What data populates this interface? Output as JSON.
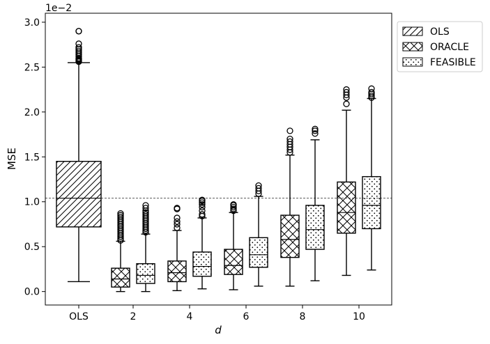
{
  "chart_data": {
    "type": "boxplot",
    "xlabel": "d",
    "ylabel": "MSE",
    "scale_label": "1e−2",
    "ylim": [
      -0.15,
      3.1
    ],
    "y_ticks": [
      "0.0",
      "0.5",
      "1.0",
      "1.5",
      "2.0",
      "2.5",
      "3.0"
    ],
    "x_ticks": [
      "OLS",
      "2",
      "4",
      "6",
      "8",
      "10"
    ],
    "reference_line": 1.04,
    "legend": {
      "placement": "outside-top-right",
      "entries": [
        "OLS",
        "ORACLE",
        "FEASIBLE"
      ]
    },
    "series": [
      {
        "name": "OLS",
        "pattern": "hatch-diagonal",
        "boxes": [
          {
            "x": "OLS",
            "whisker_low": 0.11,
            "q1": 0.72,
            "median": 1.04,
            "q3": 1.45,
            "whisker_high": 2.55,
            "outliers": [
              2.56,
              2.57,
              2.58,
              2.59,
              2.6,
              2.62,
              2.64,
              2.66,
              2.68,
              2.7,
              2.72,
              2.76,
              2.9,
              2.9
            ]
          }
        ]
      },
      {
        "name": "ORACLE",
        "pattern": "hatch-cross",
        "boxes": [
          {
            "x": "2",
            "whisker_low": 0.0,
            "q1": 0.05,
            "median": 0.14,
            "q3": 0.26,
            "whisker_high": 0.56,
            "outliers": [
              0.57,
              0.59,
              0.61,
              0.63,
              0.65,
              0.67,
              0.69,
              0.71,
              0.73,
              0.75,
              0.77,
              0.79,
              0.81,
              0.83,
              0.85,
              0.87
            ]
          },
          {
            "x": "4",
            "whisker_low": 0.01,
            "q1": 0.11,
            "median": 0.21,
            "q3": 0.34,
            "whisker_high": 0.68,
            "outliers": [
              0.71,
              0.75,
              0.78,
              0.82,
              0.92,
              0.93
            ]
          },
          {
            "x": "6",
            "whisker_low": 0.02,
            "q1": 0.19,
            "median": 0.29,
            "q3": 0.47,
            "whisker_high": 0.88,
            "outliers": [
              0.9,
              0.92,
              0.94,
              0.96,
              0.97
            ]
          },
          {
            "x": "8",
            "whisker_low": 0.06,
            "q1": 0.38,
            "median": 0.58,
            "q3": 0.85,
            "whisker_high": 1.52,
            "outliers": [
              1.55,
              1.58,
              1.61,
              1.64,
              1.67,
              1.7,
              1.79
            ]
          },
          {
            "x": "10",
            "whisker_low": 0.18,
            "q1": 0.65,
            "median": 0.88,
            "q3": 1.22,
            "whisker_high": 2.02,
            "outliers": [
              2.09,
              2.16,
              2.19,
              2.22,
              2.25
            ]
          }
        ]
      },
      {
        "name": "FEASIBLE",
        "pattern": "dots",
        "boxes": [
          {
            "x": "2",
            "whisker_low": 0.0,
            "q1": 0.09,
            "median": 0.18,
            "q3": 0.31,
            "whisker_high": 0.64,
            "outliers": [
              0.66,
              0.68,
              0.7,
              0.72,
              0.74,
              0.76,
              0.78,
              0.8,
              0.82,
              0.84,
              0.86,
              0.88,
              0.9,
              0.93,
              0.96
            ]
          },
          {
            "x": "4",
            "whisker_low": 0.03,
            "q1": 0.17,
            "median": 0.28,
            "q3": 0.44,
            "whisker_high": 0.82,
            "outliers": [
              0.84,
              0.86,
              0.9,
              0.94,
              0.97,
              0.99,
              1.01,
              1.02
            ]
          },
          {
            "x": "6",
            "whisker_low": 0.06,
            "q1": 0.27,
            "median": 0.41,
            "q3": 0.6,
            "whisker_high": 1.06,
            "outliers": [
              1.09,
              1.12,
              1.15,
              1.18
            ]
          },
          {
            "x": "8",
            "whisker_low": 0.12,
            "q1": 0.47,
            "median": 0.69,
            "q3": 0.96,
            "whisker_high": 1.69,
            "outliers": [
              1.76,
              1.79,
              1.81
            ]
          },
          {
            "x": "10",
            "whisker_low": 0.24,
            "q1": 0.7,
            "median": 0.96,
            "q3": 1.28,
            "whisker_high": 2.15,
            "outliers": [
              2.16,
              2.18,
              2.2,
              2.22,
              2.26
            ]
          }
        ]
      }
    ]
  }
}
